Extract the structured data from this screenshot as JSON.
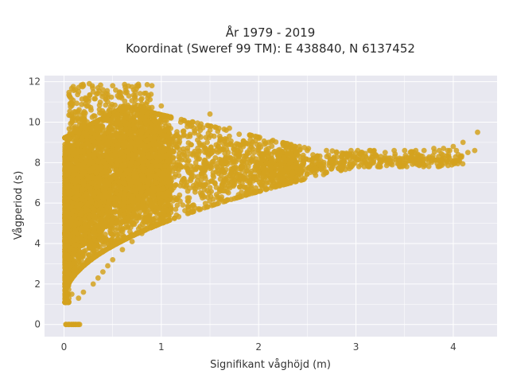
{
  "chart_data": {
    "type": "scatter",
    "title": "År 1979 - 2019",
    "subtitle": "Koordinat (Sweref 99 TM): E 438840, N 6137452",
    "xlabel": "Signifikant våghöjd (m)",
    "ylabel": "Vågperiod (s)",
    "xlim": [
      -0.2,
      4.45
    ],
    "ylim": [
      -0.6,
      12.3
    ],
    "x_ticks": [
      0,
      1,
      2,
      3,
      4
    ],
    "y_ticks": [
      0,
      2,
      4,
      6,
      8,
      10,
      12
    ],
    "grid": true,
    "marker_color": "#D4A21F",
    "plot_background": "#E8E8F0",
    "points_x": [
      0.02,
      0.05,
      0.08,
      0.1,
      0.12,
      0.15,
      0.02,
      0.05,
      0.08,
      0.04,
      0.06,
      0.03,
      0.07,
      0.09,
      0.05,
      0.1,
      0.12,
      0.15,
      0.2,
      0.22,
      0.25,
      0.3,
      0.35,
      0.4,
      0.45,
      0.5,
      0.55,
      0.6,
      0.7,
      0.8,
      0.9,
      1.0,
      1.1,
      1.2,
      1.3,
      1.4,
      1.5,
      1.6,
      1.7,
      1.8,
      1.9,
      2.0,
      2.1,
      2.2,
      2.3,
      2.4,
      2.5,
      2.6,
      2.7,
      2.8,
      2.9,
      3.0,
      3.1,
      3.2,
      3.3,
      3.4,
      3.5,
      3.6,
      3.7,
      3.8,
      3.9,
      4.0,
      4.1,
      4.25,
      0.15,
      0.2,
      0.3,
      0.35,
      0.4,
      0.45,
      0.5,
      0.6,
      0.7,
      0.8,
      0.9,
      0.25,
      0.28,
      0.33,
      0.38,
      0.42,
      0.48,
      0.52,
      0.58,
      0.62,
      0.68,
      0.75,
      0.85,
      0.95,
      1.05,
      1.15,
      1.25,
      1.35,
      1.45,
      1.55,
      1.65,
      1.75,
      1.85,
      1.95,
      2.05,
      2.15,
      2.25,
      2.35,
      2.45,
      2.55,
      2.65,
      2.75,
      2.85,
      2.95,
      3.05,
      3.15,
      3.25,
      3.45,
      3.55,
      3.65,
      3.75,
      3.85,
      3.95,
      4.05,
      4.15,
      4.22
    ],
    "points_y": [
      0,
      0,
      0,
      0,
      0,
      0,
      1.2,
      1.3,
      1.5,
      2.5,
      3.0,
      4.0,
      5.0,
      6.0,
      8.5,
      9.5,
      10.5,
      11.5,
      11.8,
      11.2,
      10.8,
      11.5,
      11.7,
      11.6,
      11.0,
      11.8,
      11.3,
      10.7,
      10.6,
      10.9,
      10.5,
      10.8,
      10.2,
      10.0,
      9.8,
      9.6,
      10.4,
      9.3,
      9.7,
      9.4,
      8.9,
      8.6,
      8.7,
      8.3,
      8.5,
      8.4,
      8.6,
      8.2,
      8.3,
      8.5,
      8.4,
      8.2,
      8.3,
      8.4,
      8.5,
      8.3,
      8.6,
      8.5,
      8.6,
      8.7,
      8.7,
      8.8,
      9.0,
      9.5,
      1.3,
      1.6,
      2.0,
      2.3,
      2.6,
      2.9,
      3.2,
      3.7,
      4.1,
      4.5,
      4.8,
      6.0,
      7.0,
      7.5,
      7.8,
      6.5,
      7.2,
      6.8,
      7.6,
      7.0,
      6.9,
      7.3,
      7.1,
      7.0,
      7.2,
      6.9,
      6.8,
      6.7,
      6.9,
      7.0,
      7.1,
      7.1,
      7.2,
      7.3,
      7.3,
      7.4,
      7.5,
      7.5,
      7.6,
      7.6,
      7.7,
      7.7,
      7.8,
      7.8,
      7.9,
      7.9,
      8.0,
      8.1,
      8.1,
      8.2,
      8.2,
      8.3,
      8.3,
      8.4,
      8.5,
      8.6
    ]
  }
}
